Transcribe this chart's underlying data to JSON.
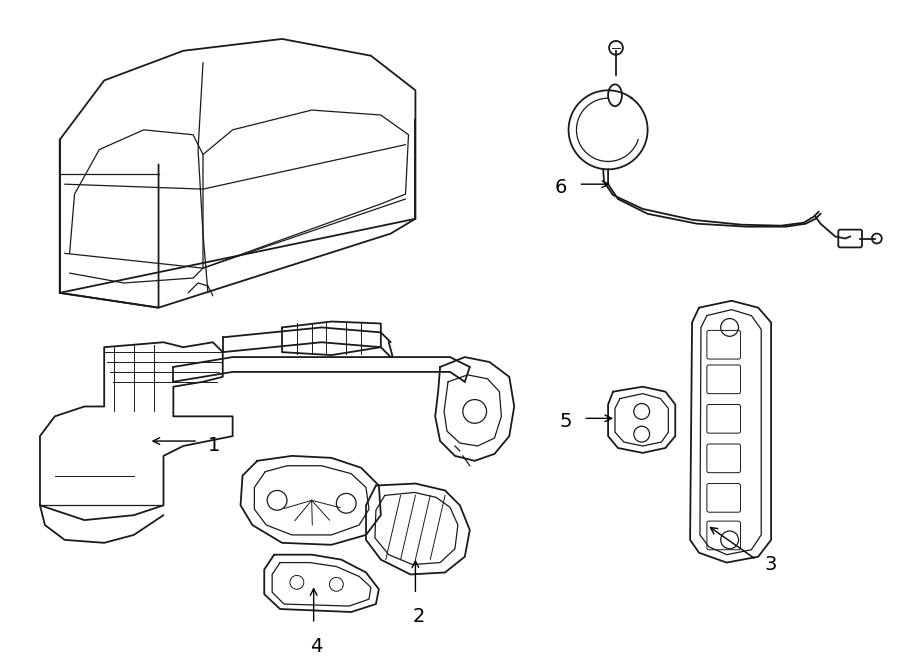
{
  "background_color": "#ffffff",
  "line_color": "#1a1a1a",
  "label_color": "#000000",
  "figure_width": 9.0,
  "figure_height": 6.61,
  "dpi": 100
}
